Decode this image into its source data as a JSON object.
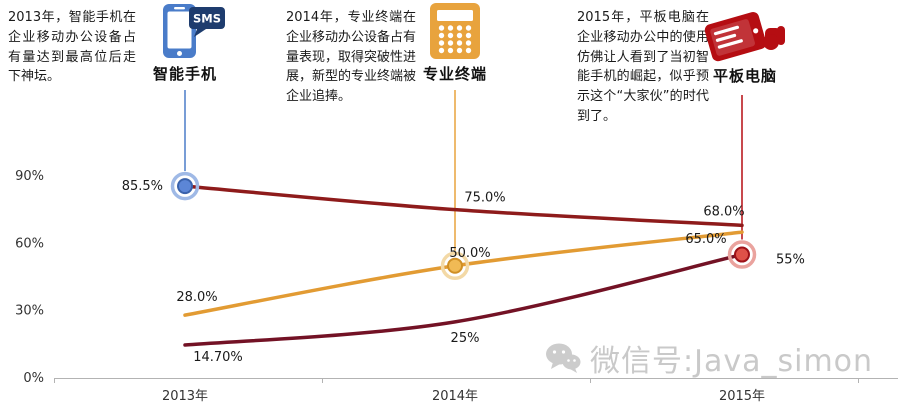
{
  "annotations": [
    {
      "text": "2013年，智能手机在企业移动办公设备占有量达到最高位后走下神坛。",
      "label": "智能手机",
      "icon": "smartphone-icon",
      "bubble_text": "SMS",
      "color": "#4a7cc9"
    },
    {
      "text": "2014年，专业终端在企业移动办公设备占有量表现，取得突破性进展，新型的专业终端被企业追捧。",
      "label": "专业终端",
      "icon": "calculator-icon",
      "color": "#e8a33d"
    },
    {
      "text": "2015年，平板电脑在企业移动办公中的使用仿佛让人看到了当初智能手机的崛起，似乎预示这个“大家伙”的时代到了。",
      "label": "平板电脑",
      "icon": "tablet-icon",
      "color": "#b50d12"
    }
  ],
  "chart_data": {
    "type": "line",
    "categories": [
      "2013年",
      "2014年",
      "2015年"
    ],
    "ylim": [
      0,
      90
    ],
    "yticks": [
      {
        "label": "0%",
        "value": 0
      },
      {
        "label": "30%",
        "value": 30
      },
      {
        "label": "60%",
        "value": 60
      },
      {
        "label": "90%",
        "value": 90
      }
    ],
    "grid": false,
    "legend": "none",
    "series": [
      {
        "name": "智能手机",
        "color": "#8e1b1b",
        "values": [
          85.5,
          75,
          68
        ],
        "labels": [
          "85.5%",
          "75.0%",
          "68.0%"
        ],
        "marker_at": 0,
        "marker": {
          "fill": "#5c86d6",
          "stroke": "#3a62ab",
          "ring": "#9fb9e6"
        }
      },
      {
        "name": "专业终端",
        "color": "#e29b33",
        "values": [
          28,
          50,
          65
        ],
        "labels": [
          "28.0%",
          "50.0%",
          "65.0%"
        ],
        "marker_at": 1,
        "marker": {
          "fill": "#f0ba55",
          "stroke": "#cf8f25",
          "ring": "#f3d9a6"
        }
      },
      {
        "name": "平板电脑",
        "color": "#731225",
        "values": [
          14.7,
          25,
          55
        ],
        "labels": [
          "14.70%",
          "25%",
          "55%"
        ],
        "marker_at": 2,
        "marker": {
          "fill": "#df5148",
          "stroke": "#9c1118",
          "ring": "#eaa39e"
        }
      }
    ]
  },
  "watermark": {
    "icon": "wechat-icon",
    "text": "微信号:Java_simon"
  }
}
